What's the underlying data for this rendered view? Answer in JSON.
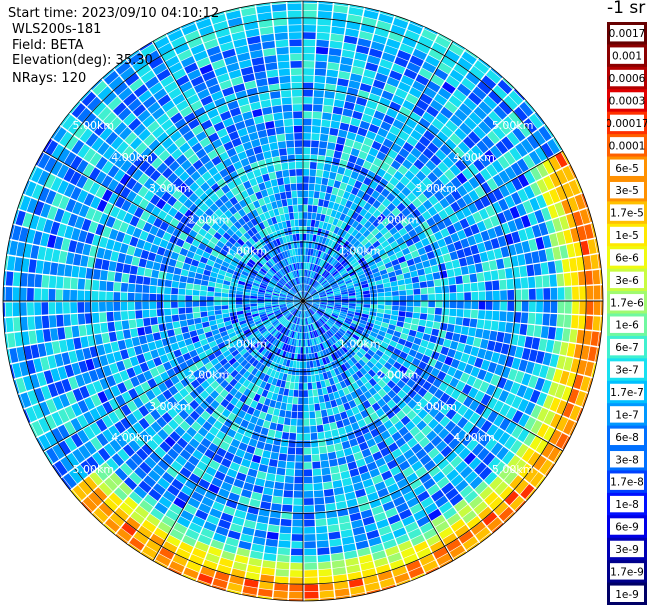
{
  "header": {
    "start_time": "Start time: 2023/09/10 04:10:12",
    "instrument": "WLS200s-181",
    "field": "Field: BETA",
    "elevation": "Elevation(deg): 35.30",
    "nrays": "NRays: 120"
  },
  "colorbar": {
    "unit_label": "-1 sr",
    "colors": [
      "#000066",
      "#00008b",
      "#0000b4",
      "#0000e6",
      "#0010ff",
      "#0040ff",
      "#0070ff",
      "#0098ff",
      "#00c0ff",
      "#18e0f0",
      "#40f0d0",
      "#70f8a0",
      "#a0fa70",
      "#c8fc40",
      "#f0fa10",
      "#ffe800",
      "#ffc000",
      "#ff9000",
      "#ff6000",
      "#ff3000",
      "#e00000",
      "#b40000",
      "#8b0000",
      "#660000"
    ],
    "labels": [
      "0.0017",
      "0.001",
      "0.0006",
      "0.0003",
      "0.00017",
      "0.0001",
      "6e-5",
      "3e-5",
      "1.7e-5",
      "1e-5",
      "6e-6",
      "3e-6",
      "1.7e-6",
      "1e-6",
      "6e-7",
      "3e-7",
      "1.7e-7",
      "1e-7",
      "6e-8",
      "3e-8",
      "1.7e-8",
      "1e-8",
      "6e-9",
      "3e-9",
      "1.7e-9",
      "1e-9"
    ]
  },
  "chart_data": {
    "type": "heatmap",
    "projection": "polar PPI scan",
    "field": "BETA",
    "nrays": 120,
    "max_range_km": 5.0,
    "range_ring_labels_km": [
      "1.00km",
      "2.00km",
      "3.00km",
      "4.00km",
      "5.00km"
    ],
    "radial_spokes_deg": [
      0,
      30,
      60,
      90,
      120,
      150,
      180,
      210,
      240,
      270,
      300,
      330
    ],
    "color_scale": "log",
    "vmin": 1e-09,
    "vmax": 0.0017,
    "background_level": "approx 6e-8 to 3e-7",
    "enhanced_band": {
      "range_km": [
        4.6,
        5.0
      ],
      "azimuth_deg": [
        60,
        230
      ],
      "level": "approx 1.7e-6 to 3e-5"
    }
  }
}
